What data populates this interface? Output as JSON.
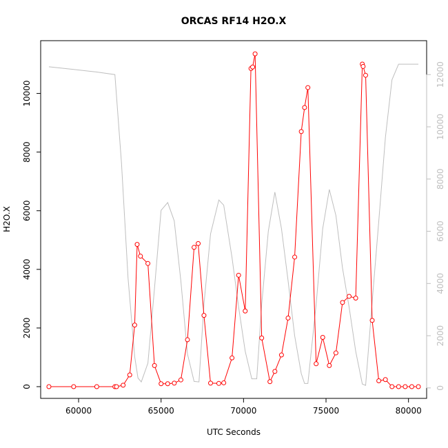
{
  "chart_data": {
    "type": "line",
    "title": "ORCAS RF14 H2O.X",
    "xlabel": "UTC Seconds",
    "ylabel": "H2O.X",
    "xlim": [
      57700,
      81100
    ],
    "ylim": [
      -400,
      11800
    ],
    "xticks": [
      60000,
      65000,
      70000,
      75000,
      80000
    ],
    "yticks": [
      0,
      2000,
      4000,
      6000,
      8000,
      10000
    ],
    "right_axis": {
      "ylim": [
        -400,
        13300
      ],
      "ticks": [
        0,
        2000,
        4000,
        6000,
        8000,
        10000,
        12000
      ],
      "color": "#bebebe"
    },
    "grid": false,
    "series": [
      {
        "color": "#ff0000",
        "marker": "open-circle",
        "x": [
          58200,
          59700,
          61100,
          62200,
          62300,
          62700,
          63100,
          63400,
          63550,
          63750,
          64200,
          64600,
          65000,
          65400,
          65800,
          66200,
          66600,
          67000,
          67250,
          67600,
          68000,
          68500,
          68800,
          69300,
          69700,
          70100,
          70450,
          70550,
          70700,
          71100,
          71600,
          71900,
          72300,
          72700,
          73100,
          73500,
          73700,
          73900,
          74400,
          74800,
          75200,
          75600,
          76000,
          76400,
          76800,
          77200,
          77250,
          77400,
          77800,
          78200,
          78600,
          79000,
          79400,
          79800,
          80200,
          80600
        ],
        "y": [
          0,
          0,
          0,
          0,
          0,
          50,
          400,
          2100,
          4850,
          4450,
          4200,
          720,
          100,
          100,
          120,
          230,
          1600,
          4750,
          4880,
          2430,
          120,
          110,
          130,
          980,
          3800,
          2580,
          10850,
          10900,
          11350,
          1660,
          170,
          520,
          1080,
          2340,
          4420,
          8700,
          9520,
          10200,
          780,
          1680,
          720,
          1150,
          2870,
          3080,
          3020,
          11000,
          10920,
          10620,
          2260,
          200,
          240,
          0,
          0,
          0,
          0,
          0
        ]
      },
      {
        "color": "#bebebe",
        "marker": "none",
        "axis": "right",
        "x": [
          58200,
          59700,
          61100,
          62200,
          62600,
          63000,
          63400,
          63600,
          63800,
          64200,
          64600,
          65000,
          65400,
          65800,
          66200,
          66600,
          67000,
          67300,
          67600,
          68000,
          68500,
          68800,
          69300,
          69700,
          70100,
          70500,
          70800,
          71100,
          71500,
          71900,
          72300,
          72700,
          73100,
          73500,
          73700,
          73900,
          74400,
          74800,
          75200,
          75600,
          76000,
          76400,
          76800,
          77200,
          77400,
          77800,
          78200,
          78600,
          79000,
          79400,
          79800,
          80200,
          80600
        ],
        "y": [
          12300,
          12200,
          12100,
          12000,
          8600,
          4200,
          1200,
          380,
          230,
          950,
          3800,
          6800,
          7100,
          6400,
          4100,
          1300,
          250,
          230,
          3200,
          5900,
          7200,
          7000,
          5000,
          3100,
          1400,
          350,
          350,
          3200,
          6000,
          7500,
          6100,
          4100,
          2000,
          550,
          170,
          170,
          3200,
          6100,
          7600,
          6600,
          4600,
          3100,
          1400,
          150,
          100,
          3300,
          6400,
          9600,
          11800,
          12400,
          12400,
          12400,
          12400
        ]
      }
    ]
  }
}
